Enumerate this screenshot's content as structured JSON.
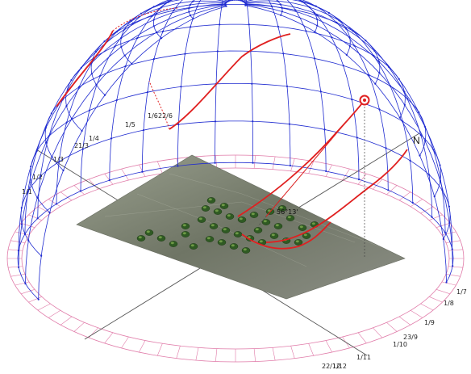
{
  "diagram": {
    "north_label": "N",
    "sun_angle_label": "56°13'",
    "date_labels_left": [
      "1/1",
      "1/2",
      "1/3",
      "21/3",
      "1/4",
      "1/5",
      "1/6",
      "22/6"
    ],
    "date_labels_right": [
      "1/7",
      "1/8",
      "1/9",
      "23/9",
      "1/10",
      "1/11",
      "1/12",
      "22/12"
    ],
    "colors": {
      "dome_grid": "#1f2bd0",
      "sun_path": "#e02020",
      "ground_ring": "#e07aa8",
      "axis": "#555555",
      "terrain": "#7f847a",
      "trees": "#2f5a23"
    }
  }
}
